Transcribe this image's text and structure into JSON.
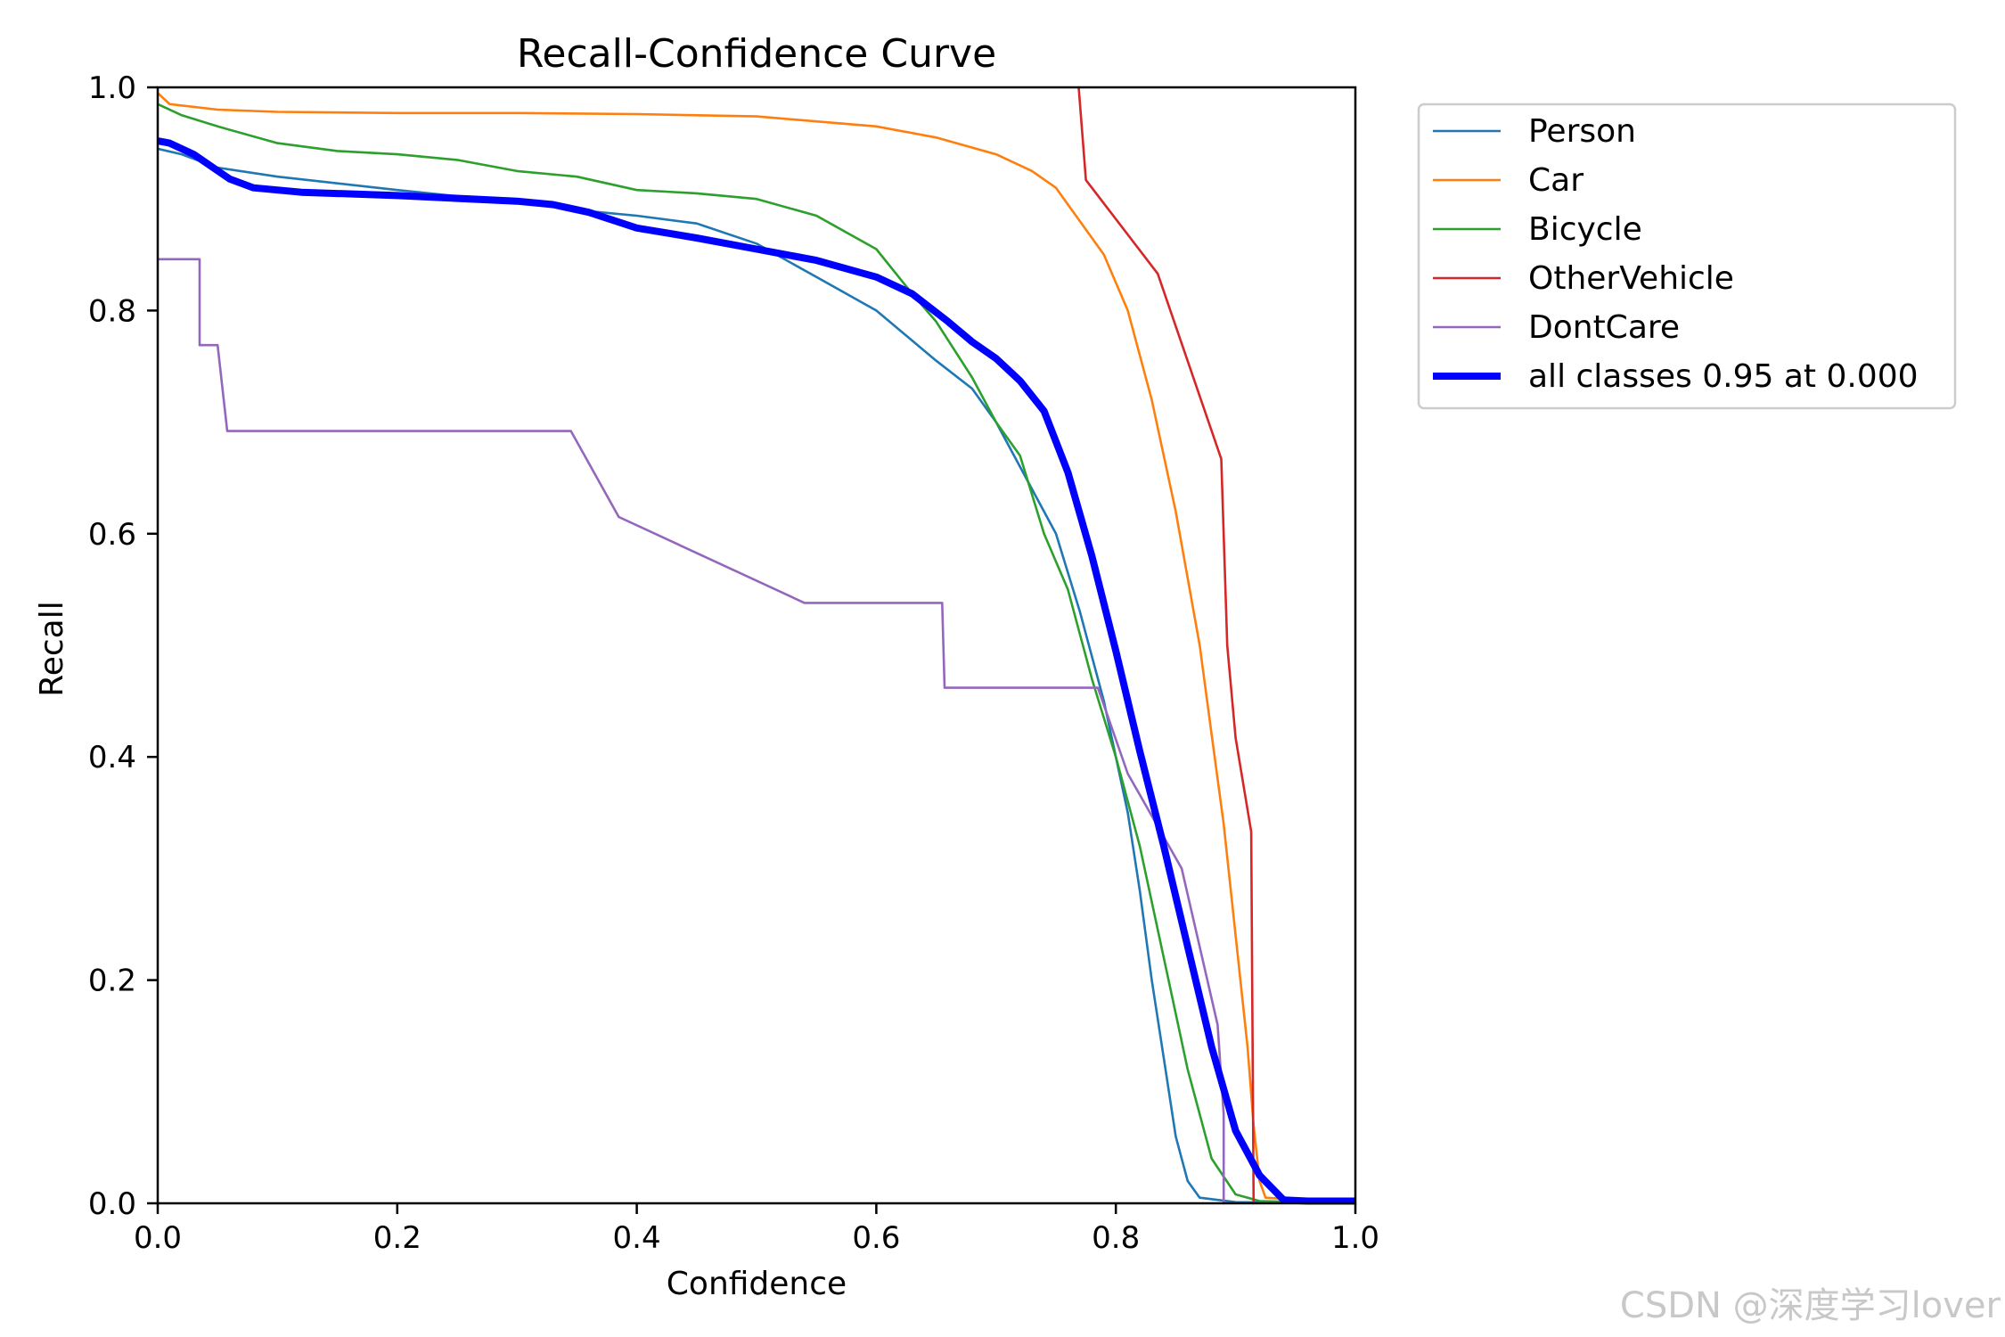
{
  "chart_data": {
    "type": "line",
    "title": "Recall-Confidence Curve",
    "xlabel": "Confidence",
    "ylabel": "Recall",
    "xlim": [
      0,
      1
    ],
    "ylim": [
      0,
      1
    ],
    "xticks": [
      "0.0",
      "0.2",
      "0.4",
      "0.6",
      "0.8",
      "1.0"
    ],
    "yticks": [
      "0.0",
      "0.2",
      "0.4",
      "0.6",
      "0.8",
      "1.0"
    ],
    "grid": false,
    "legend_position": "outside-top-right",
    "series": [
      {
        "name": "Person",
        "color": "#1f77b4",
        "width": "thin",
        "points": [
          [
            0,
            0.945
          ],
          [
            0.02,
            0.94
          ],
          [
            0.05,
            0.928
          ],
          [
            0.1,
            0.92
          ],
          [
            0.2,
            0.908
          ],
          [
            0.3,
            0.897
          ],
          [
            0.35,
            0.89
          ],
          [
            0.4,
            0.885
          ],
          [
            0.45,
            0.878
          ],
          [
            0.5,
            0.86
          ],
          [
            0.55,
            0.83
          ],
          [
            0.6,
            0.8
          ],
          [
            0.65,
            0.755
          ],
          [
            0.68,
            0.73
          ],
          [
            0.7,
            0.7
          ],
          [
            0.73,
            0.64
          ],
          [
            0.75,
            0.6
          ],
          [
            0.77,
            0.53
          ],
          [
            0.79,
            0.45
          ],
          [
            0.81,
            0.35
          ],
          [
            0.82,
            0.28
          ],
          [
            0.83,
            0.2
          ],
          [
            0.84,
            0.13
          ],
          [
            0.85,
            0.06
          ],
          [
            0.86,
            0.02
          ],
          [
            0.87,
            0.005
          ],
          [
            0.9,
            0.001
          ],
          [
            1.0,
            0.0
          ]
        ]
      },
      {
        "name": "Car",
        "color": "#ff7f0e",
        "width": "thin",
        "points": [
          [
            0,
            0.995
          ],
          [
            0.01,
            0.985
          ],
          [
            0.05,
            0.98
          ],
          [
            0.1,
            0.978
          ],
          [
            0.2,
            0.977
          ],
          [
            0.3,
            0.977
          ],
          [
            0.4,
            0.976
          ],
          [
            0.5,
            0.974
          ],
          [
            0.6,
            0.965
          ],
          [
            0.65,
            0.955
          ],
          [
            0.7,
            0.94
          ],
          [
            0.73,
            0.925
          ],
          [
            0.75,
            0.91
          ],
          [
            0.77,
            0.88
          ],
          [
            0.79,
            0.85
          ],
          [
            0.81,
            0.8
          ],
          [
            0.83,
            0.72
          ],
          [
            0.85,
            0.62
          ],
          [
            0.87,
            0.5
          ],
          [
            0.88,
            0.42
          ],
          [
            0.89,
            0.34
          ],
          [
            0.9,
            0.24
          ],
          [
            0.91,
            0.14
          ],
          [
            0.915,
            0.07
          ],
          [
            0.92,
            0.02
          ],
          [
            0.925,
            0.005
          ],
          [
            1.0,
            0.0
          ]
        ]
      },
      {
        "name": "Bicycle",
        "color": "#2ca02c",
        "width": "thin",
        "points": [
          [
            0,
            0.985
          ],
          [
            0.02,
            0.975
          ],
          [
            0.05,
            0.965
          ],
          [
            0.1,
            0.95
          ],
          [
            0.15,
            0.943
          ],
          [
            0.2,
            0.94
          ],
          [
            0.25,
            0.935
          ],
          [
            0.3,
            0.925
          ],
          [
            0.35,
            0.92
          ],
          [
            0.4,
            0.908
          ],
          [
            0.45,
            0.905
          ],
          [
            0.5,
            0.9
          ],
          [
            0.55,
            0.885
          ],
          [
            0.6,
            0.855
          ],
          [
            0.63,
            0.815
          ],
          [
            0.65,
            0.79
          ],
          [
            0.68,
            0.74
          ],
          [
            0.7,
            0.7
          ],
          [
            0.72,
            0.67
          ],
          [
            0.74,
            0.6
          ],
          [
            0.76,
            0.55
          ],
          [
            0.78,
            0.47
          ],
          [
            0.8,
            0.4
          ],
          [
            0.82,
            0.32
          ],
          [
            0.84,
            0.22
          ],
          [
            0.86,
            0.12
          ],
          [
            0.88,
            0.04
          ],
          [
            0.9,
            0.008
          ],
          [
            0.92,
            0.002
          ],
          [
            1.0,
            0.0
          ]
        ]
      },
      {
        "name": "OtherVehicle",
        "color": "#d62728",
        "width": "thin",
        "points": [
          [
            0.769,
            1.0
          ],
          [
            0.775,
            0.917
          ],
          [
            0.835,
            0.833
          ],
          [
            0.888,
            0.667
          ],
          [
            0.893,
            0.5
          ],
          [
            0.9,
            0.417
          ],
          [
            0.913,
            0.333
          ],
          [
            0.915,
            0.0
          ]
        ]
      },
      {
        "name": "DontCare",
        "color": "#9467bd",
        "width": "thin",
        "points": [
          [
            0,
            0.846
          ],
          [
            0.035,
            0.846
          ],
          [
            0.035,
            0.769
          ],
          [
            0.05,
            0.769
          ],
          [
            0.058,
            0.692
          ],
          [
            0.345,
            0.692
          ],
          [
            0.385,
            0.615
          ],
          [
            0.54,
            0.538
          ],
          [
            0.655,
            0.538
          ],
          [
            0.657,
            0.462
          ],
          [
            0.785,
            0.462
          ],
          [
            0.81,
            0.385
          ],
          [
            0.855,
            0.3
          ],
          [
            0.885,
            0.16
          ],
          [
            0.89,
            0.08
          ],
          [
            0.89,
            0.0
          ]
        ]
      },
      {
        "name": "all classes 0.95 at 0.000",
        "color": "#0000ff",
        "width": "thick",
        "points": [
          [
            0,
            0.952
          ],
          [
            0.01,
            0.95
          ],
          [
            0.03,
            0.94
          ],
          [
            0.06,
            0.918
          ],
          [
            0.08,
            0.91
          ],
          [
            0.12,
            0.906
          ],
          [
            0.2,
            0.903
          ],
          [
            0.3,
            0.898
          ],
          [
            0.33,
            0.895
          ],
          [
            0.36,
            0.888
          ],
          [
            0.4,
            0.874
          ],
          [
            0.45,
            0.865
          ],
          [
            0.5,
            0.855
          ],
          [
            0.55,
            0.845
          ],
          [
            0.6,
            0.83
          ],
          [
            0.63,
            0.815
          ],
          [
            0.66,
            0.79
          ],
          [
            0.68,
            0.772
          ],
          [
            0.7,
            0.757
          ],
          [
            0.72,
            0.737
          ],
          [
            0.74,
            0.71
          ],
          [
            0.76,
            0.655
          ],
          [
            0.78,
            0.58
          ],
          [
            0.8,
            0.495
          ],
          [
            0.82,
            0.405
          ],
          [
            0.84,
            0.32
          ],
          [
            0.86,
            0.23
          ],
          [
            0.88,
            0.14
          ],
          [
            0.9,
            0.065
          ],
          [
            0.92,
            0.025
          ],
          [
            0.94,
            0.003
          ],
          [
            0.96,
            0.002
          ],
          [
            1.0,
            0.002
          ]
        ]
      }
    ]
  },
  "watermark": "CSDN @深度学习lover"
}
